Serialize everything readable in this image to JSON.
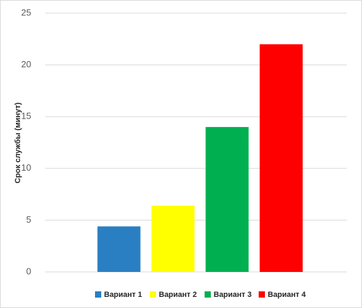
{
  "chart_data": {
    "type": "bar",
    "y_label": "Срок службы (минут)",
    "categories": [
      null
    ],
    "series": [
      {
        "name": "Вариант 1",
        "color": "#2a7fc2",
        "values": [
          4.4
        ]
      },
      {
        "name": "Вариант 2",
        "color": "#ffff00",
        "values": [
          6.4
        ]
      },
      {
        "name": "Вариант 3",
        "color": "#00b050",
        "values": [
          14
        ]
      },
      {
        "name": "Вариант 4",
        "color": "#ff0000",
        "values": [
          22
        ]
      }
    ],
    "ylim": [
      0,
      25
    ],
    "yticks": [
      0,
      5,
      10,
      15,
      20,
      25
    ],
    "grid": true,
    "legend": "bottom"
  }
}
